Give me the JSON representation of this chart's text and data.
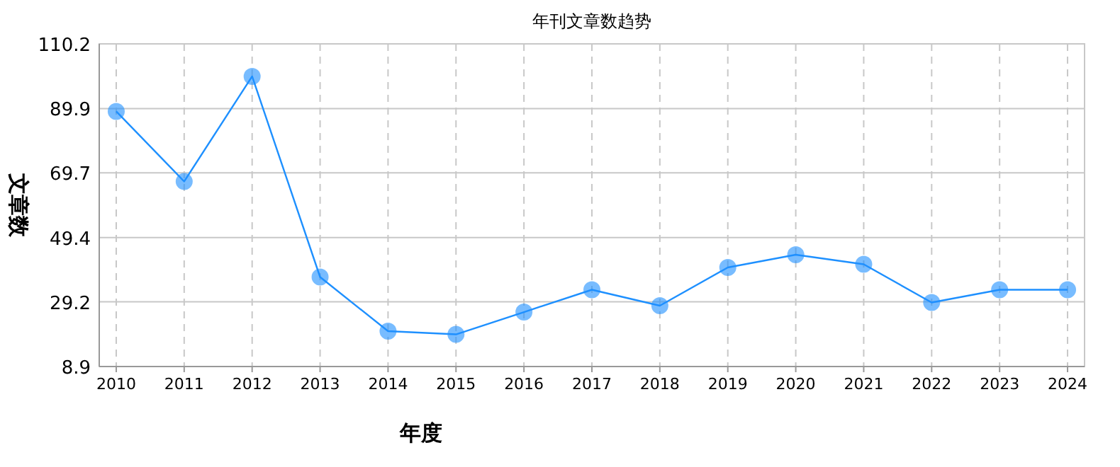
{
  "chart_data": {
    "type": "line",
    "title": "年刊文章数趋势",
    "xlabel": "年度",
    "ylabel": "文章数",
    "categories": [
      "2010",
      "2011",
      "2012",
      "2013",
      "2014",
      "2015",
      "2016",
      "2017",
      "2018",
      "2019",
      "2020",
      "2021",
      "2022",
      "2023",
      "2024"
    ],
    "series": [
      {
        "color": "#1e90ff",
        "values": [
          89,
          67,
          100,
          37,
          20,
          19,
          26,
          33,
          28,
          40,
          44,
          41,
          29,
          33,
          33
        ]
      }
    ],
    "ylim": [
      8.9,
      110.2
    ],
    "yticks": [
      8.9,
      29.2,
      49.4,
      69.7,
      89.9,
      110.2
    ],
    "grid": true,
    "marker": "circle",
    "line_style": "solid"
  }
}
